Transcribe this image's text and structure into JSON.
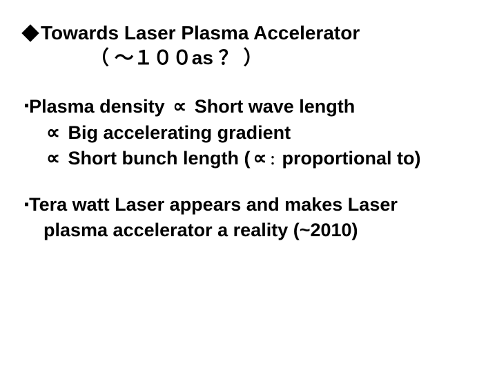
{
  "title": {
    "line1_text": "Towards Laser Plasma Accelerator",
    "line2_text": "（ ～１００as ？ ）"
  },
  "bullet1": {
    "marker": "▪",
    "line1_a": "Plasma density ",
    "line1_b": " Short wave length",
    "line2": " Big accelerating gradient",
    "line3_a": " Short bunch length (",
    "line3_b": "proportional to)",
    "prop_symbol": "∝",
    "colon": "："
  },
  "bullet2": {
    "marker": "▪",
    "line1": "Tera watt Laser appears and makes Laser",
    "line2": "plasma accelerator a reality (~2010)"
  },
  "colors": {
    "text": "#000000",
    "background": "#ffffff"
  },
  "typography": {
    "title_fontsize": 28,
    "body_fontsize": 27,
    "font_weight": "bold",
    "font_family": "Arial"
  }
}
